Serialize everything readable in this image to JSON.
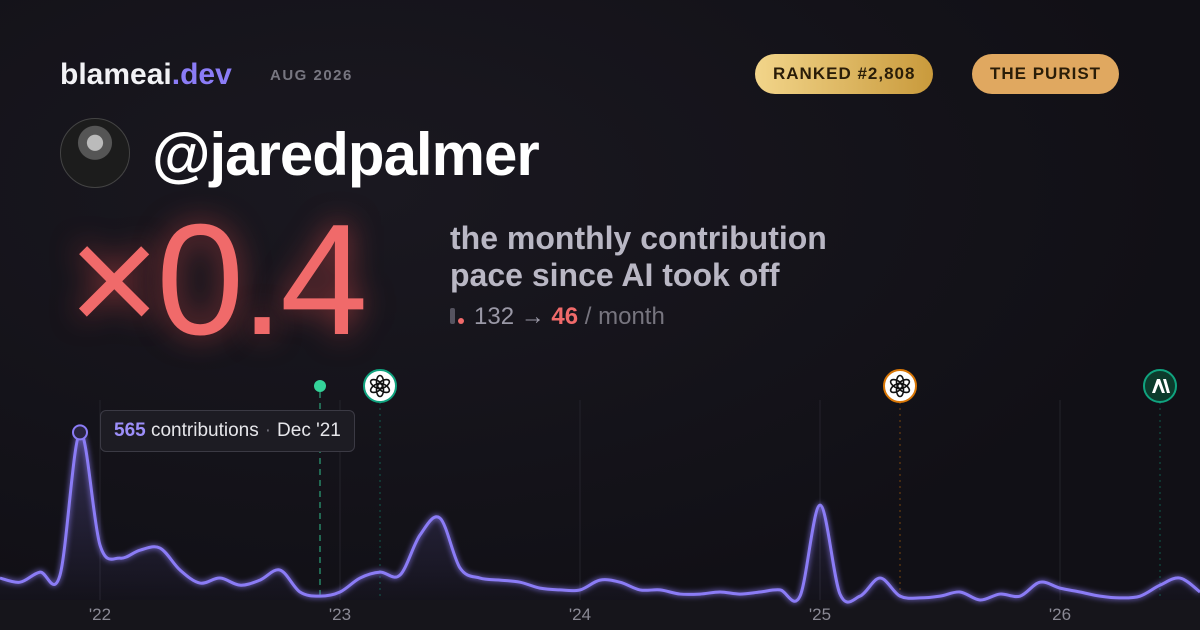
{
  "header": {
    "brand": "blameai",
    "brand_tld": ".dev",
    "date": "AUG 2026",
    "rank_badge": "RANKED #2,808",
    "persona_badge": "THE PURIST",
    "username": "@jaredpalmer"
  },
  "stat": {
    "multiplier": "×0.4",
    "caption_line1": "the monthly contribution",
    "caption_line2": "pace since AI took off",
    "before": "132",
    "arrow": "→",
    "after": "46",
    "unit": "/ month"
  },
  "chart_data": {
    "type": "line",
    "x": [
      "2021-08",
      "2021-09",
      "2021-10",
      "2021-11",
      "2021-12",
      "2022-01",
      "2022-02",
      "2022-03",
      "2022-04",
      "2022-05",
      "2022-06",
      "2022-07",
      "2022-08",
      "2022-09",
      "2022-10",
      "2022-11",
      "2022-12",
      "2023-01",
      "2023-02",
      "2023-03",
      "2023-04",
      "2023-05",
      "2023-06",
      "2023-07",
      "2023-08",
      "2023-09",
      "2023-10",
      "2023-11",
      "2023-12",
      "2024-01",
      "2024-02",
      "2024-03",
      "2024-04",
      "2024-05",
      "2024-06",
      "2024-07",
      "2024-08",
      "2024-09",
      "2024-10",
      "2024-11",
      "2024-12",
      "2025-01",
      "2025-02",
      "2025-03",
      "2025-04",
      "2025-05",
      "2025-06",
      "2025-07",
      "2025-08",
      "2025-09",
      "2025-10",
      "2025-11",
      "2025-12",
      "2026-01",
      "2026-02",
      "2026-03",
      "2026-04",
      "2026-05",
      "2026-06",
      "2026-07",
      "2026-08"
    ],
    "series": [
      {
        "name": "contributions",
        "color": "#8b7cf6",
        "values": [
          74,
          60,
          94,
          84,
          565,
          185,
          141,
          168,
          175,
          101,
          57,
          74,
          50,
          67,
          101,
          27,
          13,
          27,
          74,
          94,
          84,
          219,
          276,
          108,
          74,
          67,
          60,
          40,
          34,
          34,
          67,
          60,
          34,
          34,
          20,
          20,
          27,
          20,
          27,
          34,
          13,
          320,
          20,
          13,
          74,
          13,
          7,
          13,
          27,
          0,
          20,
          13,
          60,
          40,
          27,
          13,
          7,
          13,
          50,
          74,
          27
        ]
      }
    ],
    "ylim": [
      0,
      600
    ],
    "xticks": [
      {
        "value": "2022-01",
        "label": "'22"
      },
      {
        "value": "2023-01",
        "label": "'23"
      },
      {
        "value": "2024-01",
        "label": "'24"
      },
      {
        "value": "2025-01",
        "label": "'25"
      },
      {
        "value": "2026-01",
        "label": "'26"
      }
    ],
    "tooltip": {
      "value_label": "565",
      "unit": "contributions",
      "separator": "·",
      "date": "Dec '21"
    },
    "events": [
      {
        "x": "2022-12",
        "icon": "dot",
        "color": "#34d399"
      },
      {
        "x": "2023-03",
        "icon": "openai",
        "color": "#10a37f"
      },
      {
        "x": "2025-05",
        "icon": "openai",
        "color": "#d97706"
      },
      {
        "x": "2026-06",
        "icon": "anthropic",
        "color": "#10a37f"
      }
    ]
  }
}
